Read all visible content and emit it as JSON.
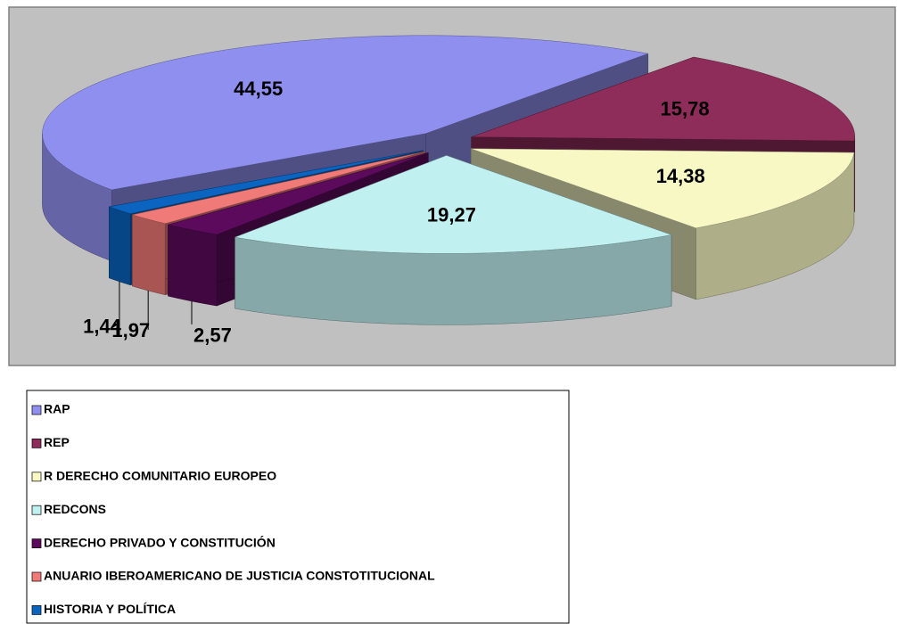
{
  "chart_data": {
    "type": "pie3d",
    "categories": [
      "RAP",
      "REP",
      "R DERECHO COMUNITARIO EUROPEO",
      "REDCONS",
      "DERECHO PRIVADO Y CONSTITUCIÓN",
      "ANUARIO IBEROAMERICANO DE JUSTICIA CONSTOTITUCIONAL",
      "HISTORIA Y POLÍTICA"
    ],
    "values": [
      44.55,
      15.78,
      14.38,
      19.27,
      2.57,
      1.97,
      1.44
    ],
    "value_labels": [
      "44,55",
      "15,78",
      "14,38",
      "19,27",
      "2,57",
      "1,97",
      "1,44"
    ],
    "colors": [
      "#8f8fef",
      "#8e2c5a",
      "#f8f8c4",
      "#c0f0f0",
      "#5c0a5c",
      "#f07a78",
      "#0a64c0"
    ],
    "legend": "bottom-left"
  }
}
